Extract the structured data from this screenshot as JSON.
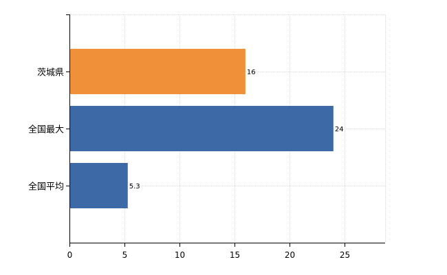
{
  "chart_data": {
    "type": "bar",
    "orientation": "horizontal",
    "categories": [
      "茨城県",
      "全国最大",
      "全国平均"
    ],
    "values": [
      16,
      24,
      5.3
    ],
    "data_labels": [
      "16",
      "24",
      "5.3"
    ],
    "colors": [
      "#f0913a",
      "#3d6aa6",
      "#3d6aa6"
    ],
    "xlim": [
      0,
      28.7
    ],
    "xticks": [
      0,
      5,
      10,
      15,
      20,
      25
    ],
    "xtick_labels": [
      "0",
      "5",
      "10",
      "15",
      "20",
      "25"
    ],
    "grid": true,
    "legend": "none"
  }
}
